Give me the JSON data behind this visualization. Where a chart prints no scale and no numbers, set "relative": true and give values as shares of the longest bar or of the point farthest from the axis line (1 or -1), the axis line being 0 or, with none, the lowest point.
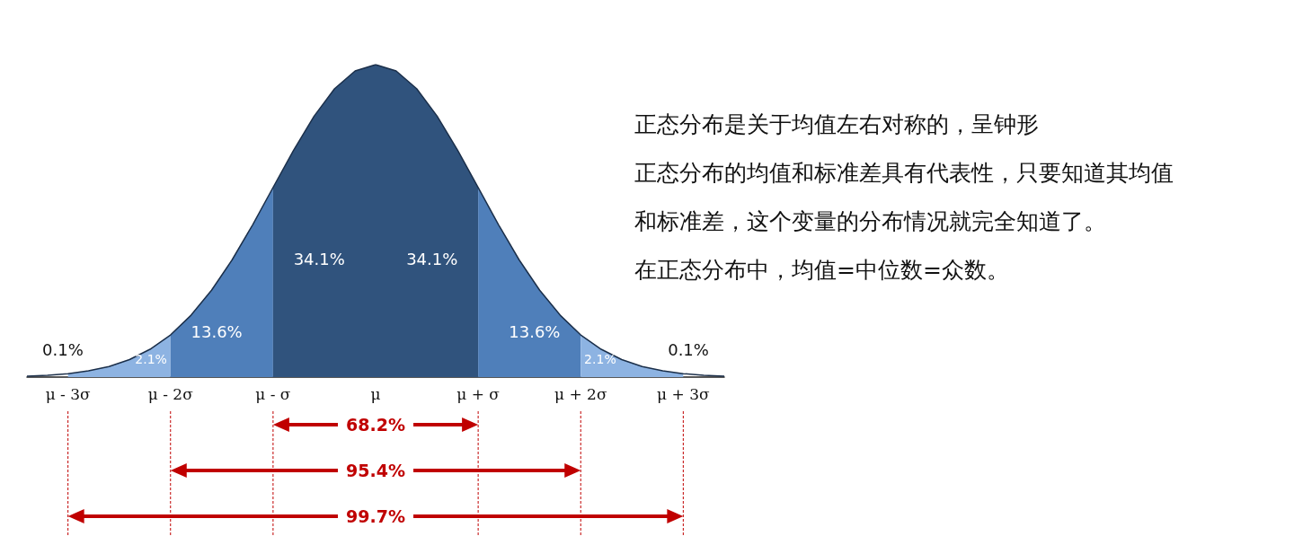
{
  "chart_data": {
    "type": "area",
    "relative": true,
    "marker": "none",
    "xlim": [
      -3.4,
      3.4
    ],
    "xticks": [
      {
        "value": -3,
        "label": "μ - 3σ"
      },
      {
        "value": -2,
        "label": "μ - 2σ"
      },
      {
        "value": -1,
        "label": "μ - σ"
      },
      {
        "value": 0,
        "label": "μ"
      },
      {
        "value": 1,
        "label": "μ + σ"
      },
      {
        "value": 2,
        "label": "μ + 2σ"
      },
      {
        "value": 3,
        "label": "μ + 3σ"
      }
    ],
    "series": [
      {
        "type": "line",
        "color": "#1b2f4a",
        "line_style": "solid",
        "x": [
          -3.4,
          -3.2,
          -3,
          -2.8,
          -2.6,
          -2.4,
          -2.2,
          -2,
          -1.8,
          -1.6,
          -1.4,
          -1.2,
          -1,
          -0.8,
          -0.6,
          -0.4,
          -0.2,
          0,
          0.2,
          0.4,
          0.6,
          0.8,
          1,
          1.2,
          1.4,
          1.6,
          1.8,
          2,
          2.2,
          2.4,
          2.6,
          2.8,
          3,
          3.2,
          3.4
        ],
        "values": [
          0.003,
          0.006,
          0.011,
          0.02,
          0.034,
          0.056,
          0.089,
          0.135,
          0.198,
          0.278,
          0.375,
          0.487,
          0.607,
          0.726,
          0.835,
          0.923,
          0.98,
          1,
          0.98,
          0.923,
          0.835,
          0.726,
          0.607,
          0.487,
          0.375,
          0.278,
          0.198,
          0.135,
          0.089,
          0.056,
          0.034,
          0.02,
          0.011,
          0.006,
          0.003
        ]
      },
      {
        "color": "#8db3e2",
        "x": [
          -3,
          -2.8,
          -2.6,
          -2.4,
          -2.2,
          -2
        ],
        "values": [
          0.011,
          0.02,
          0.034,
          0.056,
          0.089,
          0.135
        ]
      },
      {
        "color": "#4f7fba",
        "x": [
          -2,
          -1.8,
          -1.6,
          -1.4,
          -1.2,
          -1
        ],
        "values": [
          0.135,
          0.198,
          0.278,
          0.375,
          0.487,
          0.607
        ]
      },
      {
        "color": "#30537d",
        "x": [
          -1,
          -0.8,
          -0.6,
          -0.4,
          -0.2,
          0
        ],
        "values": [
          0.607,
          0.726,
          0.835,
          0.923,
          0.98,
          1
        ]
      },
      {
        "color": "#30537d",
        "x": [
          0,
          0.2,
          0.4,
          0.6,
          0.8,
          1
        ],
        "values": [
          1,
          0.98,
          0.923,
          0.835,
          0.726,
          0.607
        ]
      },
      {
        "color": "#4f7fba",
        "x": [
          1,
          1.2,
          1.4,
          1.6,
          1.8,
          2
        ],
        "values": [
          0.607,
          0.487,
          0.375,
          0.278,
          0.198,
          0.135
        ]
      },
      {
        "color": "#8db3e2",
        "x": [
          2,
          2.2,
          2.4,
          2.6,
          2.8,
          3
        ],
        "values": [
          0.135,
          0.089,
          0.056,
          0.034,
          0.02,
          0.011
        ]
      }
    ],
    "annotations": [
      "0.1%",
      "2.1%",
      "13.6%",
      "34.1%",
      "34.1%",
      "13.6%",
      "2.1%",
      "0.1%",
      "68.2%",
      "95.4%",
      "99.7%",
      "正态分布是关于均值左右对称的，呈钟形",
      "正态分布的均值和标准差具有代表性，只要知道其均值",
      "和标准差，这个变量的分布情况就完全知道了。",
      "在正态分布中，均值=中位数=众数。"
    ]
  }
}
